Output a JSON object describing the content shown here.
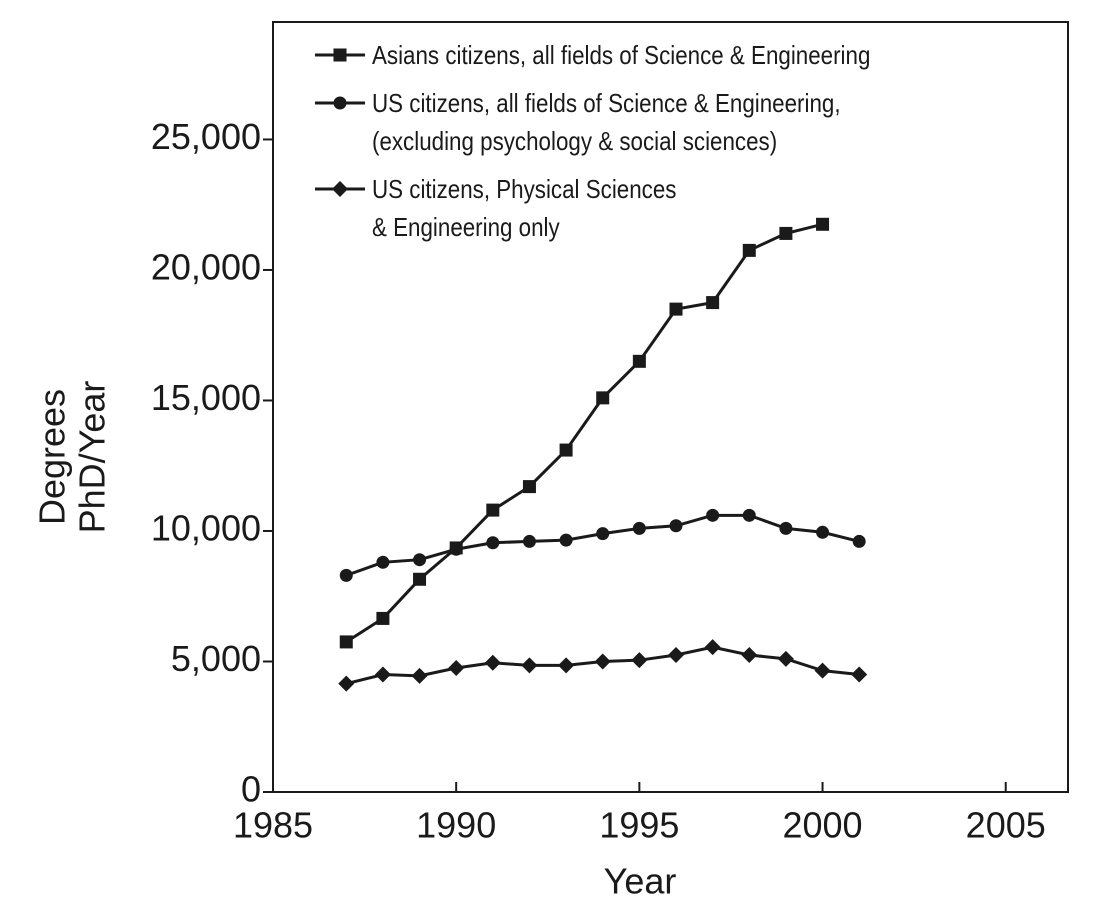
{
  "chart_data": {
    "type": "line",
    "x_label": "Year",
    "y_label": [
      "Degrees",
      "PhD/Year"
    ],
    "x": [
      1987,
      1988,
      1989,
      1990,
      1991,
      1992,
      1993,
      1994,
      1995,
      1996,
      1997,
      1998,
      1999,
      2000,
      2001
    ],
    "series": [
      {
        "name": "Asians citizens, all fields of Science & Engineering",
        "color": "#1a1a1a",
        "marker": "square",
        "values": [
          5750,
          6650,
          8150,
          9350,
          10800,
          11700,
          13100,
          15100,
          16500,
          18500,
          18750,
          20750,
          21400,
          21750,
          null
        ]
      },
      {
        "name": "US citizens, all fields of Science & Engineering,\n(excluding psychology & social sciences)",
        "color": "#1a1a1a",
        "marker": "circle",
        "values": [
          8300,
          8800,
          8900,
          9300,
          9550,
          9600,
          9650,
          9900,
          10100,
          10200,
          10600,
          10600,
          10100,
          9950,
          9600
        ]
      },
      {
        "name": "US citizens, Physical Sciences\n& Engineering only",
        "color": "#1a1a1a",
        "marker": "diamond",
        "values": [
          4150,
          4500,
          4450,
          4750,
          4950,
          4850,
          4850,
          5000,
          5050,
          5250,
          5550,
          5250,
          5100,
          4650,
          4500
        ]
      }
    ],
    "xlim": [
      1985,
      2006.7
    ],
    "ylim": [
      0,
      29500
    ],
    "xticks": [
      1985,
      1990,
      1995,
      2000,
      2005
    ],
    "yticks": [
      0,
      {
        "value": 5000,
        "label": "5,000"
      },
      {
        "value": 10000,
        "label": "10,000"
      },
      {
        "value": 15000,
        "label": "15,000"
      },
      {
        "value": 20000,
        "label": "20,000"
      },
      {
        "value": 25000,
        "label": "25,000"
      }
    ],
    "legend": "upper-left",
    "grid": false
  }
}
